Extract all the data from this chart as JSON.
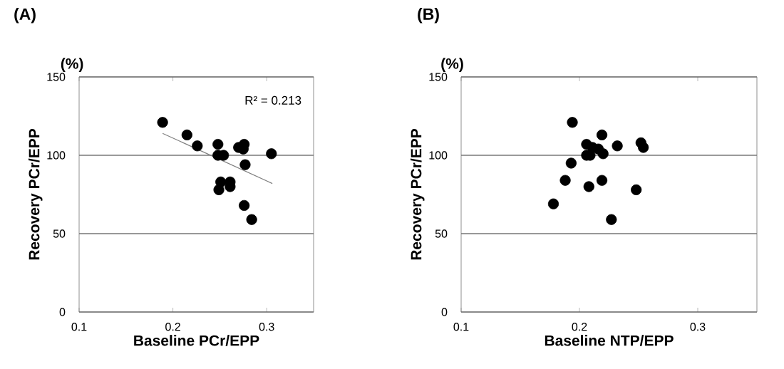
{
  "chart_data": [
    {
      "type": "scatter",
      "title": "(A)",
      "xlabel": "Baseline PCr/EPP",
      "ylabel": "Recovery PCr/EPP",
      "annotations": [
        "(%)",
        "R² = 0.213"
      ],
      "xlim": [
        0.1,
        0.35
      ],
      "xticks": [
        0.1,
        0.2,
        0.3
      ],
      "ylim": [
        0,
        150
      ],
      "yticks": [
        0,
        50,
        100,
        150
      ],
      "grid": "y",
      "marker": "circle",
      "series": [
        {
          "type": "scatter",
          "color": "#000000",
          "x": [
            0.189,
            0.215,
            0.226,
            0.248,
            0.248,
            0.254,
            0.27,
            0.276,
            0.275,
            0.305,
            0.277,
            0.251,
            0.261,
            0.249,
            0.261,
            0.276,
            0.284
          ],
          "values": [
            121,
            113,
            106,
            107,
            100,
            100,
            105,
            107,
            104,
            101,
            94,
            83,
            83,
            78,
            80,
            68,
            59
          ]
        },
        {
          "type": "line",
          "color": "#808080",
          "marker": "none",
          "x": [
            0.189,
            0.306
          ],
          "values": [
            114,
            82
          ]
        }
      ]
    },
    {
      "type": "scatter",
      "title": "(B)",
      "xlabel": "Baseline NTP/EPP",
      "ylabel": "Recovery PCr/EPP",
      "annotations": [
        "(%)"
      ],
      "xlim": [
        0.1,
        0.35
      ],
      "xticks": [
        0.1,
        0.2,
        0.3
      ],
      "ylim": [
        0,
        150
      ],
      "yticks": [
        0,
        50,
        100,
        150
      ],
      "grid": "y",
      "marker": "circle",
      "series": [
        {
          "type": "scatter",
          "color": "#000000",
          "x": [
            0.194,
            0.219,
            0.206,
            0.211,
            0.216,
            0.22,
            0.206,
            0.209,
            0.232,
            0.252,
            0.254,
            0.193,
            0.188,
            0.219,
            0.208,
            0.248,
            0.178,
            0.227
          ],
          "values": [
            121,
            113,
            107,
            105,
            104,
            101,
            100,
            100,
            106,
            108,
            105,
            95,
            84,
            84,
            80,
            78,
            69,
            59
          ]
        }
      ]
    }
  ]
}
